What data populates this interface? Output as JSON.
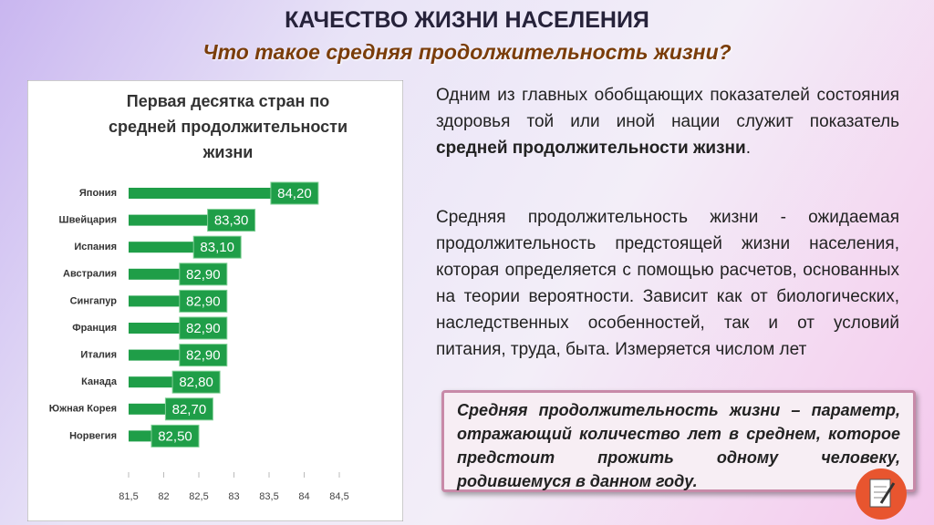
{
  "header": {
    "title": "КАЧЕСТВО ЖИЗНИ НАСЕЛЕНИЯ",
    "subtitle": "Что такое средняя продолжительность жизни?"
  },
  "chart_data": {
    "type": "barh",
    "title": [
      "Первая десятка стран по",
      "средней продолжительности",
      "жизни"
    ],
    "categories": [
      "Япония",
      "Швейцария",
      "Испания",
      "Австралия",
      "Сингапур",
      "Франция",
      "Италия",
      "Канада",
      "Южная Корея",
      "Норвегия"
    ],
    "values": [
      84.2,
      83.3,
      83.1,
      82.9,
      82.9,
      82.9,
      82.9,
      82.8,
      82.7,
      82.5
    ],
    "value_labels": [
      "84,20",
      "83,30",
      "83,10",
      "82,90",
      "82,90",
      "82,90",
      "82,90",
      "82,80",
      "82,70",
      "82,50"
    ],
    "color": "#1f9e48",
    "xlim": [
      81.5,
      84.5
    ],
    "xticks": [
      {
        "value": 81.5,
        "label": "81,5"
      },
      82,
      {
        "value": 82.5,
        "label": "82,5"
      },
      83,
      {
        "value": 83.5,
        "label": "83,5"
      },
      84,
      {
        "value": 84.5,
        "label": "84,5"
      }
    ]
  },
  "paragraphs": [
    {
      "text": "Одним из главных обобщающих показателей состояния здоровья той или иной нации служит показатель",
      "bold": "средней продолжительности жизни",
      "end": "."
    },
    {
      "text": "Средняя продолжительность жизни  - ожидаемая продолжительность предстоящей жизни населения, которая определяется с помощью расчетов, основанных на теории вероятности. Зависит как от биологических, наследственных особенностей, так и от условий питания, труда, быта. Измеряется числом лет"
    }
  ],
  "definition": "Средняя продолжительность жизни – параметр, отражающий количество лет в среднем, которое предстоит прожить одному человеку, родившемуся в данном году."
}
